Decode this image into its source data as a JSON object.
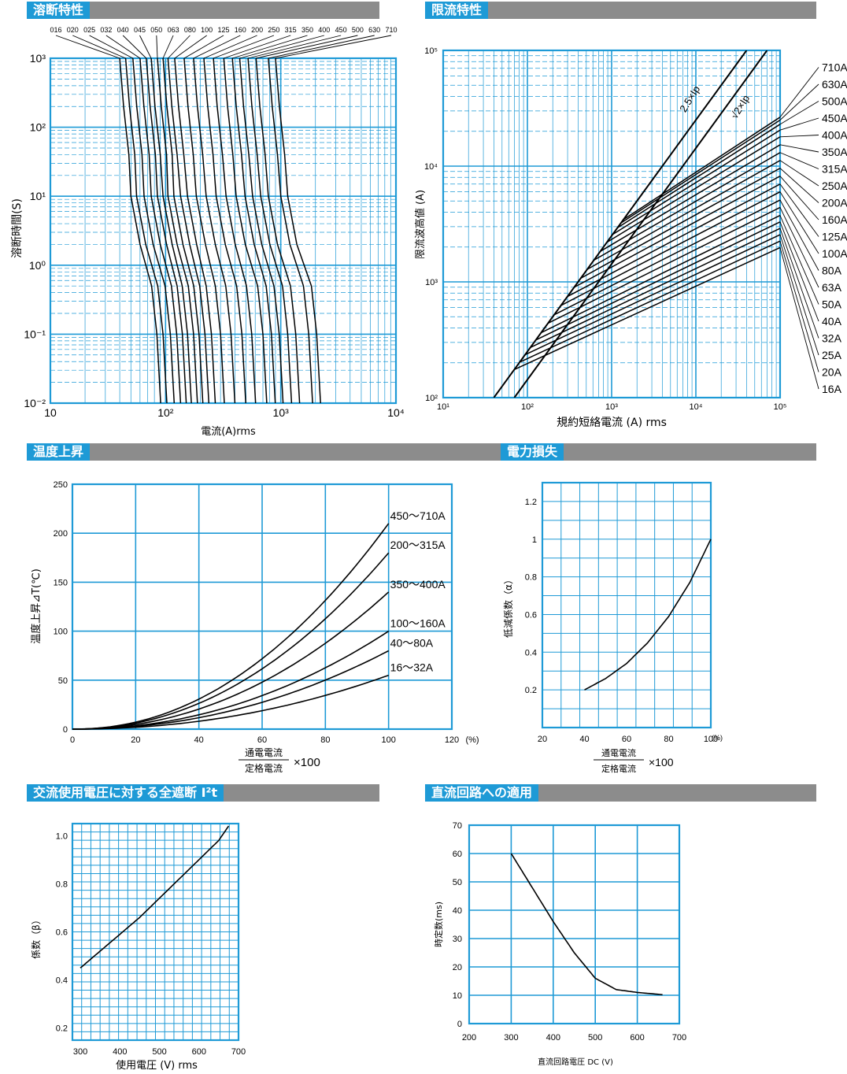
{
  "sections": {
    "melting": "溶断特性",
    "limiting": "限流特性",
    "temperature": "温度上昇",
    "power": "電力損失",
    "i2t": "交流使用電圧に対する全遮断 I²t",
    "dc": "直流回路への適用"
  },
  "chart_data": [
    {
      "id": "melting",
      "type": "line",
      "xscale": "log",
      "yscale": "log",
      "xlim": [
        10,
        10000
      ],
      "ylim": [
        0.01,
        1000
      ],
      "xlabel": "電流(A)rms",
      "ylabel": "溶断時間(S)",
      "xticks": [
        "10",
        "10²",
        "10³",
        "10⁴"
      ],
      "yticks": [
        "10⁻²",
        "10⁻¹",
        "10⁰",
        "10¹",
        "10²",
        "10³"
      ],
      "ratings": [
        "016",
        "020",
        "025",
        "032",
        "040",
        "045",
        "050",
        "063",
        "080",
        "100",
        "125",
        "160",
        "200",
        "250",
        "315",
        "350",
        "400",
        "450",
        "500",
        "630",
        "710"
      ],
      "series_knees": [
        [
          40,
          50,
          84
        ],
        [
          45,
          56,
          95
        ],
        [
          52,
          65,
          110
        ],
        [
          60,
          75,
          125
        ],
        [
          68,
          85,
          140
        ],
        [
          75,
          95,
          155
        ],
        [
          85,
          105,
          175
        ],
        [
          95,
          118,
          195
        ],
        [
          105,
          135,
          220
        ],
        [
          120,
          155,
          250
        ],
        [
          145,
          185,
          300
        ],
        [
          175,
          225,
          370
        ],
        [
          215,
          275,
          460
        ],
        [
          260,
          335,
          560
        ],
        [
          320,
          410,
          700
        ],
        [
          380,
          490,
          830
        ],
        [
          440,
          570,
          970
        ],
        [
          520,
          670,
          1150
        ],
        [
          610,
          780,
          1350
        ],
        [
          780,
          1000,
          1750
        ],
        [
          900,
          1150,
          2050
        ]
      ]
    },
    {
      "id": "limiting",
      "type": "line",
      "xscale": "log",
      "yscale": "log",
      "xlim": [
        10,
        100000
      ],
      "ylim": [
        100,
        100000
      ],
      "xlabel": "規約短絡電流 (A) rms",
      "ylabel": "限流波高値 (A)",
      "xticks": [
        "10¹",
        "10²",
        "10³",
        "10⁴",
        "10⁵"
      ],
      "yticks": [
        "10²",
        "10³",
        "10⁴",
        "10⁵"
      ],
      "ref_lines": [
        {
          "name": "2.5×Ip",
          "label": "2.5×Ip",
          "factor": 2.5
        },
        {
          "name": "√2×Ip",
          "label": "√2×Ip",
          "factor": 1.41
        }
      ],
      "series": [
        {
          "name": "16A",
          "end": 1980
        },
        {
          "name": "20A",
          "end": 2250
        },
        {
          "name": "25A",
          "end": 2560
        },
        {
          "name": "32A",
          "end": 2900
        },
        {
          "name": "40A",
          "end": 3300
        },
        {
          "name": "50A",
          "end": 3750
        },
        {
          "name": "63A",
          "end": 4400
        },
        {
          "name": "80A",
          "end": 5100
        },
        {
          "name": "100A",
          "end": 6000
        },
        {
          "name": "125A",
          "end": 7000
        },
        {
          "name": "160A",
          "end": 8200
        },
        {
          "name": "200A",
          "end": 9600
        },
        {
          "name": "250A",
          "end": 11200
        },
        {
          "name": "315A",
          "end": 13100
        },
        {
          "name": "350A",
          "end": 15300
        },
        {
          "name": "400A",
          "end": 17900
        },
        {
          "name": "450A",
          "end": 20500
        },
        {
          "name": "500A",
          "end": 23000
        },
        {
          "name": "630A",
          "end": 25000
        },
        {
          "name": "710A",
          "end": 26500
        }
      ]
    },
    {
      "id": "temperature",
      "type": "line",
      "xlim": [
        0,
        120
      ],
      "ylim": [
        0,
        250
      ],
      "xticks": [
        0,
        20,
        40,
        60,
        80,
        100,
        120
      ],
      "yticks": [
        0,
        50,
        100,
        150,
        200,
        250
      ],
      "xunit": "(%)",
      "ylabel": "温度上昇⊿T(℃)",
      "xlabel_num": "通電電流",
      "xlabel_den": "定格電流",
      "xlabel_mul": "×100",
      "series": [
        {
          "name": "450〜710A",
          "x": [
            0,
            20,
            40,
            60,
            80,
            100
          ],
          "y": [
            0,
            10,
            30,
            65,
            125,
            210
          ]
        },
        {
          "name": "200〜315A",
          "x": [
            0,
            20,
            40,
            60,
            80,
            100
          ],
          "y": [
            0,
            8,
            25,
            55,
            100,
            180
          ]
        },
        {
          "name": "350〜400A",
          "x": [
            0,
            20,
            40,
            60,
            80,
            100
          ],
          "y": [
            0,
            7,
            22,
            48,
            85,
            140
          ]
        },
        {
          "name": "100〜160A",
          "x": [
            0,
            20,
            40,
            60,
            80,
            100
          ],
          "y": [
            0,
            6,
            18,
            38,
            62,
            100
          ]
        },
        {
          "name": "40〜80A",
          "x": [
            0,
            20,
            40,
            60,
            80,
            100
          ],
          "y": [
            0,
            5,
            15,
            30,
            52,
            80
          ]
        },
        {
          "name": "16〜32A",
          "x": [
            0,
            20,
            40,
            60,
            80,
            100
          ],
          "y": [
            0,
            4,
            12,
            22,
            35,
            55
          ]
        }
      ]
    },
    {
      "id": "power",
      "type": "line",
      "xlim": [
        20,
        100
      ],
      "ylim": [
        0,
        1.3
      ],
      "xticks": [
        20,
        40,
        60,
        80,
        100
      ],
      "yticks": [
        0.2,
        0.4,
        0.6,
        0.8,
        1,
        1.2
      ],
      "xunit": "(%)",
      "ylabel": "低減係数（α）",
      "xlabel_num": "通電電流",
      "xlabel_den": "定格電流",
      "xlabel_mul": "×100",
      "series": [
        {
          "x": [
            40,
            50,
            60,
            70,
            80,
            90,
            100
          ],
          "y": [
            0.2,
            0.26,
            0.34,
            0.45,
            0.59,
            0.77,
            1.0
          ]
        }
      ]
    },
    {
      "id": "i2t",
      "type": "line",
      "xlim": [
        280,
        700
      ],
      "ylim": [
        0.15,
        1.05
      ],
      "xticks": [
        300,
        400,
        500,
        600,
        700
      ],
      "yticks": [
        "0.2",
        "0.4",
        "0.6",
        "0.8",
        "1.0"
      ],
      "xlabel": "使用電圧 (V) rms",
      "ylabel": "係数（β）",
      "series": [
        {
          "x": [
            300,
            350,
            400,
            450,
            500,
            550,
            600,
            650,
            675
          ],
          "y": [
            0.45,
            0.52,
            0.59,
            0.66,
            0.74,
            0.82,
            0.9,
            0.98,
            1.04
          ]
        }
      ]
    },
    {
      "id": "dc",
      "type": "line",
      "xlim": [
        200,
        700
      ],
      "ylim": [
        0,
        70
      ],
      "xticks": [
        200,
        300,
        400,
        500,
        600,
        700
      ],
      "yticks": [
        0,
        10,
        20,
        30,
        40,
        50,
        60,
        70
      ],
      "xlabel": "直流回路電圧 DC (V)",
      "ylabel": "時定数(ms)",
      "series": [
        {
          "x": [
            300,
            350,
            400,
            450,
            500,
            550,
            600,
            660
          ],
          "y": [
            60,
            48,
            36,
            25,
            16,
            12,
            11,
            10.2
          ]
        }
      ]
    }
  ]
}
